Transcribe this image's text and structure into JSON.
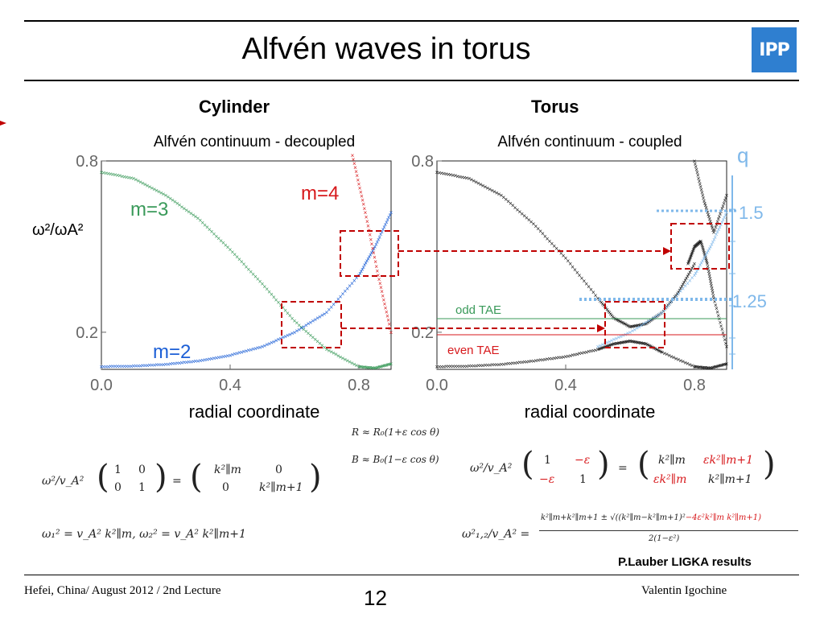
{
  "slide": {
    "title": "Alfvén waves in torus",
    "logo_text": "IPP",
    "footer_left": "Hefei, China/ August 2012 / 2nd Lecture",
    "page_number": "12",
    "footer_right": "Valentin Igochine",
    "credit": "P.Lauber LIGKA results"
  },
  "panels": {
    "left_heading": "Cylinder",
    "right_heading": "Torus"
  },
  "colors": {
    "green": "#3a9a5a",
    "blue": "#1c5fd6",
    "red": "#d7191c",
    "black": "#111111",
    "lightblue": "#7fb8ea",
    "dashed_red": "#c00000"
  },
  "chart_data": [
    {
      "type": "scatter",
      "title": "Alfvén continuum - decoupled",
      "xlabel": "radial coordinate",
      "ylabel": "ω²/ωA²",
      "xlim": [
        0,
        0.9
      ],
      "ylim": [
        0.07,
        0.8
      ],
      "xticks": [
        "0.0",
        "0.4",
        "0.8"
      ],
      "yticks": [
        "0.2",
        "0.8"
      ],
      "series": [
        {
          "name": "m=3",
          "color": "#3a9a5a",
          "x": [
            0.0,
            0.1,
            0.2,
            0.3,
            0.4,
            0.5,
            0.6,
            0.7,
            0.8,
            0.85,
            0.9
          ],
          "y": [
            0.76,
            0.74,
            0.68,
            0.6,
            0.49,
            0.37,
            0.24,
            0.14,
            0.08,
            0.075,
            0.09
          ]
        },
        {
          "name": "m=2",
          "color": "#1c5fd6",
          "x": [
            0.0,
            0.1,
            0.2,
            0.3,
            0.4,
            0.5,
            0.6,
            0.7,
            0.8,
            0.85,
            0.9
          ],
          "y": [
            0.08,
            0.082,
            0.088,
            0.1,
            0.12,
            0.15,
            0.2,
            0.27,
            0.4,
            0.5,
            0.62
          ]
        },
        {
          "name": "m=4",
          "color": "#d7191c",
          "x": [
            0.78,
            0.82,
            0.86,
            0.9
          ],
          "y": [
            0.82,
            0.62,
            0.4,
            0.2
          ]
        }
      ],
      "annotations": [
        "m=3",
        "m=4",
        "m=2"
      ]
    },
    {
      "type": "scatter",
      "title": "Alfvén continuum - coupled",
      "xlabel": "radial coordinate",
      "xlim": [
        0,
        0.9
      ],
      "ylim": [
        0.07,
        0.8
      ],
      "xticks": [
        "0.0",
        "0.4",
        "0.8"
      ],
      "yticks": [
        "0.2",
        "0.8"
      ],
      "q_label": "q",
      "q_values": [
        "1.5",
        "1.25"
      ],
      "tae_labels": [
        "odd TAE",
        "even TAE"
      ],
      "series": [
        {
          "name": "upper-branch",
          "color": "#111111",
          "x": [
            0.0,
            0.1,
            0.2,
            0.3,
            0.4,
            0.5,
            0.55,
            0.6,
            0.65,
            0.7,
            0.75,
            0.8
          ],
          "y": [
            0.76,
            0.74,
            0.68,
            0.58,
            0.46,
            0.32,
            0.25,
            0.22,
            0.23,
            0.27,
            0.34,
            0.44
          ]
        },
        {
          "name": "lower-branch",
          "color": "#111111",
          "x": [
            0.0,
            0.1,
            0.2,
            0.3,
            0.4,
            0.5,
            0.55,
            0.6,
            0.65,
            0.7,
            0.8,
            0.85,
            0.9
          ],
          "y": [
            0.08,
            0.082,
            0.088,
            0.1,
            0.115,
            0.14,
            0.16,
            0.17,
            0.16,
            0.13,
            0.08,
            0.075,
            0.09
          ]
        },
        {
          "name": "high-branch-a",
          "color": "#111111",
          "x": [
            0.8,
            0.83,
            0.86,
            0.9
          ],
          "y": [
            0.8,
            0.66,
            0.55,
            0.68
          ]
        },
        {
          "name": "high-branch-b",
          "color": "#111111",
          "x": [
            0.78,
            0.8,
            0.82,
            0.84,
            0.86,
            0.9
          ],
          "y": [
            0.44,
            0.5,
            0.52,
            0.44,
            0.32,
            0.15
          ]
        },
        {
          "name": "uncoupled",
          "color": "#7fb8ea",
          "x": [
            0.5,
            0.6,
            0.7,
            0.8,
            0.85,
            0.9
          ],
          "y": [
            0.15,
            0.2,
            0.27,
            0.4,
            0.5,
            0.62
          ]
        }
      ]
    }
  ],
  "equations": {
    "geometry_R": "R ≈ R₀(1+ε cos θ)",
    "geometry_B": "B ≈ B₀(1−ε cos θ)",
    "cyl_matrix_lhs": "ω²/v_A²",
    "cyl_matrix": [
      "1",
      "0",
      "0",
      "1"
    ],
    "cyl_matrix_rhs": [
      "k²∥m",
      "0",
      "0",
      "k²∥m+1"
    ],
    "cyl_eigen": "ω₁² = v_A² k²∥m,   ω₂² = v_A² k²∥m+1",
    "torus_matrix_lhs": "ω²/v_A²",
    "torus_matrix": [
      "1",
      "−ε",
      "−ε",
      "1"
    ],
    "torus_matrix_rhs": [
      "k²∥m",
      "εk²∥m+1",
      "εk²∥m",
      "k²∥m+1"
    ],
    "torus_eigen_lhs": "ω²₁,₂/v_A² =",
    "torus_eigen_num_black": "k²∥m+k²∥m+1 ± √((k²∥m−k²∥m+1)²",
    "torus_eigen_num_red": "−4ε²k²∥m k²∥m+1)",
    "torus_eigen_den": "2(1−ε²)"
  }
}
